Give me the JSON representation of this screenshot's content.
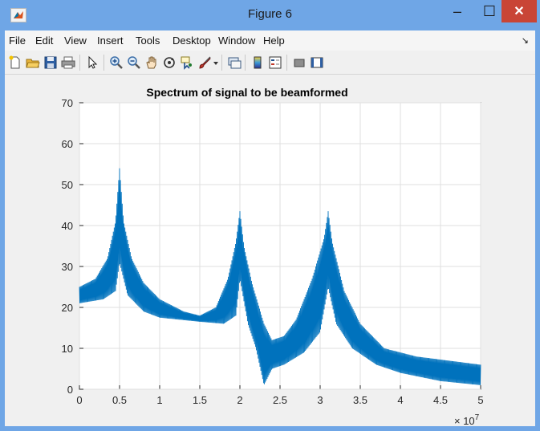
{
  "window": {
    "title": "Figure 6",
    "minimize_glyph": "–",
    "maximize_glyph": "☐",
    "close_glyph": "✕"
  },
  "menu": {
    "items": [
      "File",
      "Edit",
      "View",
      "Insert",
      "Tools",
      "Desktop",
      "Window",
      "Help"
    ],
    "overflow_glyph": "↘"
  },
  "toolbar": {
    "icons": [
      "new-figure-icon",
      "open-file-icon",
      "save-icon",
      "print-icon",
      "pointer-icon",
      "zoom-in-icon",
      "zoom-out-icon",
      "pan-hand-icon",
      "rotate-3d-icon",
      "data-cursor-icon",
      "brush-icon",
      "brush-dropdown-icon",
      "link-plot-icon",
      "colorbar-icon",
      "legend-icon",
      "hide-plot-tools-icon",
      "show-plot-tools-icon"
    ]
  },
  "colors": {
    "line": "#0072bd",
    "titlebar": "#6fa6e6",
    "close": "#c94536",
    "grid": "#dfdfdf"
  },
  "chart_data": {
    "type": "line",
    "title": "Spectrum of signal to be beamformed",
    "xlabel": "",
    "ylabel": "",
    "xlim": [
      0,
      5
    ],
    "ylim": [
      0,
      70
    ],
    "x_exponent_label": "× 10",
    "x_exponent_power": "7",
    "xticks": [
      "0",
      "0.5",
      "1",
      "1.5",
      "2",
      "2.5",
      "3",
      "3.5",
      "4",
      "4.5",
      "5"
    ],
    "yticks": [
      "0",
      "10",
      "20",
      "30",
      "40",
      "50",
      "60",
      "70"
    ],
    "grid": true,
    "series": [
      {
        "envelope_upper": [
          [
            0,
            25
          ],
          [
            0.2,
            27
          ],
          [
            0.35,
            32
          ],
          [
            0.45,
            41
          ],
          [
            0.5,
            54
          ],
          [
            0.55,
            41
          ],
          [
            0.65,
            32
          ],
          [
            0.8,
            26
          ],
          [
            1.0,
            22
          ],
          [
            1.3,
            19
          ],
          [
            1.5,
            18
          ],
          [
            1.7,
            20
          ],
          [
            1.85,
            27
          ],
          [
            1.95,
            36
          ],
          [
            2.0,
            43.5
          ],
          [
            2.05,
            35
          ],
          [
            2.15,
            26
          ],
          [
            2.3,
            16
          ],
          [
            2.4,
            12
          ],
          [
            2.55,
            13
          ],
          [
            2.7,
            17
          ],
          [
            2.9,
            27
          ],
          [
            3.05,
            37
          ],
          [
            3.1,
            43.5
          ],
          [
            3.15,
            36
          ],
          [
            3.3,
            24
          ],
          [
            3.5,
            16
          ],
          [
            3.8,
            10
          ],
          [
            4.2,
            8
          ],
          [
            4.6,
            7
          ],
          [
            5.0,
            6
          ]
        ],
        "envelope_lower": [
          [
            0,
            21
          ],
          [
            0.3,
            22
          ],
          [
            0.45,
            24
          ],
          [
            0.5,
            31
          ],
          [
            0.6,
            23
          ],
          [
            0.8,
            19
          ],
          [
            1.0,
            17.5
          ],
          [
            1.5,
            16.5
          ],
          [
            1.8,
            16
          ],
          [
            1.95,
            18
          ],
          [
            2.0,
            27
          ],
          [
            2.1,
            16
          ],
          [
            2.2,
            10
          ],
          [
            2.3,
            1
          ],
          [
            2.4,
            5
          ],
          [
            2.55,
            6
          ],
          [
            2.8,
            9
          ],
          [
            3.0,
            14
          ],
          [
            3.1,
            25
          ],
          [
            3.2,
            16
          ],
          [
            3.4,
            10
          ],
          [
            3.7,
            6
          ],
          [
            4.0,
            4
          ],
          [
            4.5,
            2
          ],
          [
            5.0,
            1
          ]
        ]
      }
    ]
  }
}
